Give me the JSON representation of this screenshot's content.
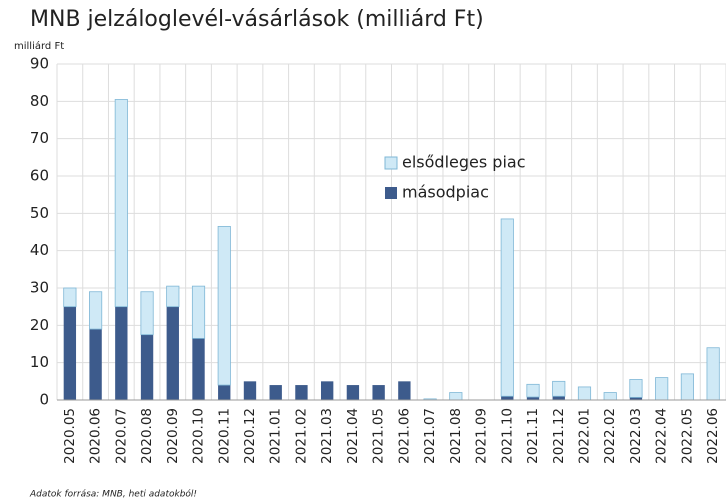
{
  "chart_data": {
    "type": "stacked_bar",
    "title": "MNB jelzáloglevél-vásárlások (milliárd Ft)",
    "unit_label": "milliárd Ft",
    "source": "Adatok forrása: MNB, heti adatokból!",
    "categories": [
      "2020.05",
      "2020.06",
      "2020.07",
      "2020.08",
      "2020.09",
      "2020.10",
      "2020.11",
      "2020.12",
      "2021.01",
      "2021.02",
      "2021.03",
      "2021.04",
      "2021.05",
      "2021.06",
      "2021.07",
      "2021.08",
      "2021.09",
      "2021.10",
      "2021.11",
      "2021.12",
      "2022.01",
      "2022.02",
      "2022.03",
      "2022.04",
      "2022.05",
      "2022.06"
    ],
    "series": [
      {
        "name": "elsődleges piac",
        "color": "#cfe9f6",
        "values": [
          5,
          10,
          55.5,
          11.5,
          5.5,
          14,
          42.5,
          0,
          0,
          0,
          0,
          0,
          0,
          0,
          0.3,
          2,
          0,
          47.5,
          3.4,
          4,
          3.5,
          2,
          4.8,
          6,
          7,
          14
        ]
      },
      {
        "name": "másodpiac",
        "color": "#3d5b8c",
        "values": [
          25,
          19,
          25,
          17.5,
          25,
          16.5,
          4,
          5,
          4,
          4,
          5,
          4,
          4,
          5,
          0,
          0,
          0,
          1,
          0.8,
          1,
          0,
          0,
          0.7,
          0,
          0,
          0
        ]
      }
    ],
    "ylim": [
      0,
      90
    ],
    "yticks": [
      0,
      10,
      20,
      30,
      40,
      50,
      60,
      70,
      80,
      90
    ],
    "grid": true
  }
}
